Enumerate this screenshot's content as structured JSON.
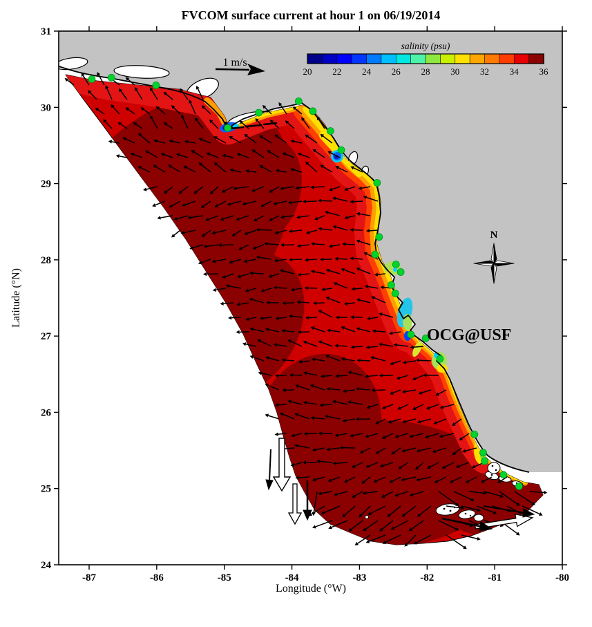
{
  "figure": {
    "title": "FVCOM surface current at hour 1 on 06/19/2014",
    "x_axis_label": "Longitude (°W)",
    "y_axis_label": "Latitude (°N)",
    "colorbar_label": "salinity (psu)",
    "scale_arrow_label": "1 m/s",
    "compass_label": "N",
    "annotation": "OCG@USF"
  },
  "chart_data": {
    "type": "map",
    "subtype": "filled-salinity-contours-with-current-quiver",
    "title": "FVCOM surface current at hour 1 on 06/19/2014",
    "xlabel": "Longitude (°W)",
    "ylabel": "Latitude (°N)",
    "xlim": [
      -87.45,
      -80.0
    ],
    "ylim": [
      24,
      31
    ],
    "x_ticks": [
      -87,
      -86,
      -85,
      -84,
      -83,
      -82,
      -81,
      -80
    ],
    "y_ticks": [
      24,
      25,
      26,
      27,
      28,
      29,
      30,
      31
    ],
    "grid": false,
    "colorbar": {
      "label": "salinity (psu)",
      "min": 20,
      "max": 36,
      "ticks": [
        20,
        22,
        24,
        26,
        28,
        30,
        32,
        34,
        36
      ],
      "colors": [
        "#000089",
        "#0000C4",
        "#0000FF",
        "#0036FF",
        "#007BFF",
        "#00BFFF",
        "#00E8E0",
        "#4DF3A8",
        "#8FE840",
        "#C8F000",
        "#FFE000",
        "#FFA700",
        "#FF7A00",
        "#FF3D00",
        "#E80000",
        "#8B0000"
      ]
    },
    "quiver": {
      "scale_label": "1 m/s",
      "arrow_color": "#000000"
    },
    "annotations": [
      {
        "text": "OCG@USF",
        "color": "#FF0000",
        "lon": -82.0,
        "lat": 27.05
      }
    ],
    "compass": {
      "label": "N",
      "lon": -81.0,
      "lat": 28.0
    },
    "stations": {
      "marker_color": "#00D42C",
      "points": [
        [
          -86.96,
          30.37
        ],
        [
          -86.67,
          30.39
        ],
        [
          -86.01,
          30.29
        ],
        [
          -84.95,
          29.73
        ],
        [
          -84.49,
          29.93
        ],
        [
          -83.9,
          30.08
        ],
        [
          -83.69,
          29.95
        ],
        [
          -83.43,
          29.69
        ],
        [
          -83.27,
          29.44
        ],
        [
          -82.74,
          29.01
        ],
        [
          -82.71,
          28.3
        ],
        [
          -82.77,
          28.07
        ],
        [
          -82.46,
          27.94
        ],
        [
          -82.39,
          27.84
        ],
        [
          -82.53,
          27.67
        ],
        [
          -82.47,
          27.56
        ],
        [
          -82.24,
          27.02
        ],
        [
          -82.02,
          26.97
        ],
        [
          -81.81,
          26.7
        ],
        [
          -81.3,
          25.71
        ],
        [
          -81.17,
          25.47
        ],
        [
          -81.15,
          25.36
        ],
        [
          -80.87,
          25.18
        ],
        [
          -80.64,
          25.03
        ]
      ]
    },
    "colors": {
      "land": "#C3C3C3",
      "outside_model_domain": "#FFFFFF",
      "coastline": "#000000",
      "dominant_field_color": "#8B0000"
    }
  }
}
